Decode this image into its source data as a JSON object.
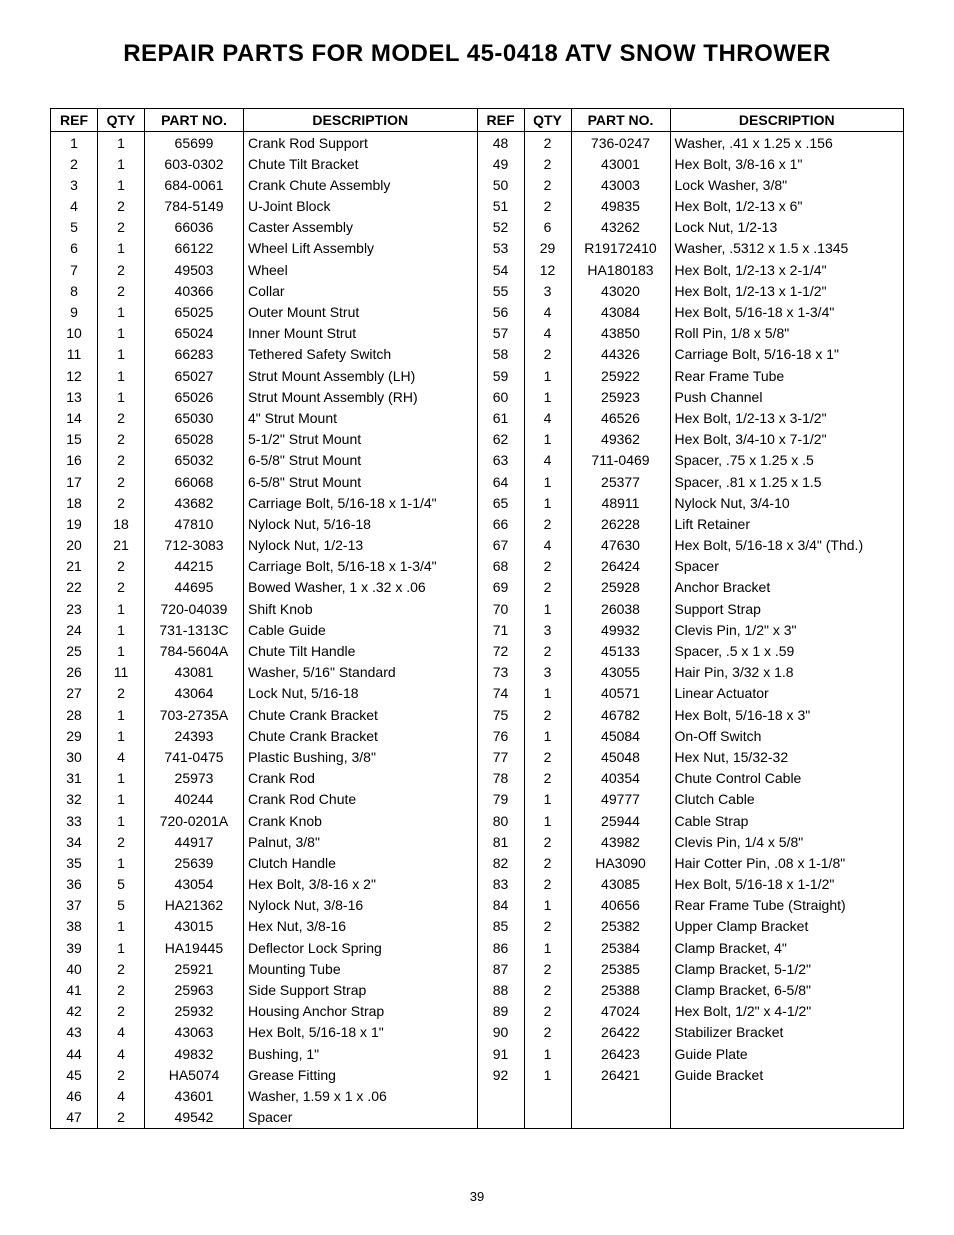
{
  "title": "REPAIR PARTS FOR MODEL 45-0418 ATV SNOW THROWER",
  "page_number": "39",
  "headers": {
    "ref": "REF",
    "qty": "QTY",
    "part": "PART NO.",
    "desc": "DESCRIPTION"
  },
  "styling": {
    "font_family": "Arial, Helvetica, sans-serif",
    "title_fontsize": 24,
    "body_fontsize": 14,
    "border_color": "#000000",
    "background_color": "#ffffff",
    "text_color": "#000000",
    "col_widths": {
      "ref": 38,
      "qty": 38,
      "part": 90
    }
  },
  "left": [
    {
      "ref": "1",
      "qty": "1",
      "part": "65699",
      "desc": "Crank Rod Support"
    },
    {
      "ref": "2",
      "qty": "1",
      "part": "603-0302",
      "desc": "Chute Tilt Bracket"
    },
    {
      "ref": "3",
      "qty": "1",
      "part": "684-0061",
      "desc": "Crank Chute Assembly"
    },
    {
      "ref": "4",
      "qty": "2",
      "part": "784-5149",
      "desc": "U-Joint Block"
    },
    {
      "ref": "5",
      "qty": "2",
      "part": "66036",
      "desc": "Caster Assembly"
    },
    {
      "ref": "6",
      "qty": "1",
      "part": "66122",
      "desc": "Wheel Lift Assembly"
    },
    {
      "ref": "7",
      "qty": "2",
      "part": "49503",
      "desc": "Wheel"
    },
    {
      "ref": "8",
      "qty": "2",
      "part": "40366",
      "desc": "Collar"
    },
    {
      "ref": "9",
      "qty": "1",
      "part": "65025",
      "desc": "Outer Mount Strut"
    },
    {
      "ref": "10",
      "qty": "1",
      "part": "65024",
      "desc": "Inner Mount Strut"
    },
    {
      "ref": "11",
      "qty": "1",
      "part": "66283",
      "desc": "Tethered Safety Switch"
    },
    {
      "ref": "12",
      "qty": "1",
      "part": "65027",
      "desc": "Strut Mount Assembly (LH)"
    },
    {
      "ref": "13",
      "qty": "1",
      "part": "65026",
      "desc": "Strut Mount Assembly (RH)"
    },
    {
      "ref": "14",
      "qty": "2",
      "part": "65030",
      "desc": "4\" Strut Mount"
    },
    {
      "ref": "15",
      "qty": "2",
      "part": "65028",
      "desc": "5-1/2\" Strut Mount"
    },
    {
      "ref": "16",
      "qty": "2",
      "part": "65032",
      "desc": "6-5/8\" Strut Mount"
    },
    {
      "ref": "17",
      "qty": "2",
      "part": "66068",
      "desc": "6-5/8\" Strut Mount"
    },
    {
      "ref": "18",
      "qty": "2",
      "part": "43682",
      "desc": "Carriage Bolt, 5/16-18 x 1-1/4\""
    },
    {
      "ref": "19",
      "qty": "18",
      "part": "47810",
      "desc": "Nylock Nut, 5/16-18"
    },
    {
      "ref": "20",
      "qty": "21",
      "part": "712-3083",
      "desc": "Nylock Nut, 1/2-13"
    },
    {
      "ref": "21",
      "qty": "2",
      "part": "44215",
      "desc": "Carriage Bolt, 5/16-18 x 1-3/4\""
    },
    {
      "ref": "22",
      "qty": "2",
      "part": "44695",
      "desc": "Bowed Washer, 1 x .32 x .06"
    },
    {
      "ref": "23",
      "qty": "1",
      "part": "720-04039",
      "desc": "Shift Knob"
    },
    {
      "ref": "24",
      "qty": "1",
      "part": "731-1313C",
      "desc": "Cable Guide"
    },
    {
      "ref": "25",
      "qty": "1",
      "part": "784-5604A",
      "desc": "Chute Tilt Handle"
    },
    {
      "ref": "26",
      "qty": "11",
      "part": "43081",
      "desc": "Washer, 5/16\" Standard"
    },
    {
      "ref": "27",
      "qty": "2",
      "part": "43064",
      "desc": "Lock Nut, 5/16-18"
    },
    {
      "ref": "28",
      "qty": "1",
      "part": "703-2735A",
      "desc": "Chute Crank Bracket"
    },
    {
      "ref": "29",
      "qty": "1",
      "part": "24393",
      "desc": "Chute Crank Bracket"
    },
    {
      "ref": "30",
      "qty": "4",
      "part": "741-0475",
      "desc": "Plastic Bushing, 3/8\""
    },
    {
      "ref": "31",
      "qty": "1",
      "part": "25973",
      "desc": "Crank Rod"
    },
    {
      "ref": "32",
      "qty": "1",
      "part": "40244",
      "desc": "Crank Rod Chute"
    },
    {
      "ref": "33",
      "qty": "1",
      "part": "720-0201A",
      "desc": "Crank Knob"
    },
    {
      "ref": "34",
      "qty": "2",
      "part": "44917",
      "desc": "Palnut, 3/8\""
    },
    {
      "ref": "35",
      "qty": "1",
      "part": "25639",
      "desc": "Clutch Handle"
    },
    {
      "ref": "36",
      "qty": "5",
      "part": "43054",
      "desc": "Hex Bolt, 3/8-16 x 2\""
    },
    {
      "ref": "37",
      "qty": "5",
      "part": "HA21362",
      "desc": "Nylock Nut, 3/8-16"
    },
    {
      "ref": "38",
      "qty": "1",
      "part": "43015",
      "desc": "Hex Nut, 3/8-16"
    },
    {
      "ref": "39",
      "qty": "1",
      "part": "HA19445",
      "desc": "Deflector Lock Spring"
    },
    {
      "ref": "40",
      "qty": "2",
      "part": "25921",
      "desc": "Mounting Tube"
    },
    {
      "ref": "41",
      "qty": "2",
      "part": "25963",
      "desc": "Side Support Strap"
    },
    {
      "ref": "42",
      "qty": "2",
      "part": "25932",
      "desc": "Housing Anchor Strap"
    },
    {
      "ref": "43",
      "qty": "4",
      "part": "43063",
      "desc": "Hex Bolt, 5/16-18 x 1\""
    },
    {
      "ref": "44",
      "qty": "4",
      "part": "49832",
      "desc": "Bushing, 1\""
    },
    {
      "ref": "45",
      "qty": "2",
      "part": "HA5074",
      "desc": "Grease Fitting"
    },
    {
      "ref": "46",
      "qty": "4",
      "part": "43601",
      "desc": "Washer, 1.59 x 1 x .06"
    },
    {
      "ref": "47",
      "qty": "2",
      "part": "49542",
      "desc": "Spacer"
    }
  ],
  "right": [
    {
      "ref": "48",
      "qty": "2",
      "part": "736-0247",
      "desc": "Washer, .41 x 1.25 x .156"
    },
    {
      "ref": "49",
      "qty": "2",
      "part": "43001",
      "desc": "Hex Bolt, 3/8-16 x 1\""
    },
    {
      "ref": "50",
      "qty": "2",
      "part": "43003",
      "desc": "Lock Washer, 3/8\""
    },
    {
      "ref": "51",
      "qty": "2",
      "part": "49835",
      "desc": "Hex Bolt, 1/2-13 x 6\""
    },
    {
      "ref": "52",
      "qty": "6",
      "part": "43262",
      "desc": "Lock Nut, 1/2-13"
    },
    {
      "ref": "53",
      "qty": "29",
      "part": "R19172410",
      "desc": "Washer, .5312 x 1.5 x .1345"
    },
    {
      "ref": "54",
      "qty": "12",
      "part": "HA180183",
      "desc": "Hex Bolt, 1/2-13 x 2-1/4\""
    },
    {
      "ref": "55",
      "qty": "3",
      "part": "43020",
      "desc": "Hex Bolt, 1/2-13 x 1-1/2\""
    },
    {
      "ref": "56",
      "qty": "4",
      "part": "43084",
      "desc": "Hex Bolt, 5/16-18 x 1-3/4\""
    },
    {
      "ref": "57",
      "qty": "4",
      "part": "43850",
      "desc": "Roll Pin, 1/8 x 5/8\""
    },
    {
      "ref": "58",
      "qty": "2",
      "part": "44326",
      "desc": "Carriage Bolt, 5/16-18 x 1\""
    },
    {
      "ref": "59",
      "qty": "1",
      "part": "25922",
      "desc": "Rear Frame Tube"
    },
    {
      "ref": "60",
      "qty": "1",
      "part": "25923",
      "desc": "Push Channel"
    },
    {
      "ref": "61",
      "qty": "4",
      "part": "46526",
      "desc": "Hex Bolt, 1/2-13 x 3-1/2\""
    },
    {
      "ref": "62",
      "qty": "1",
      "part": "49362",
      "desc": "Hex Bolt, 3/4-10 x 7-1/2\""
    },
    {
      "ref": "63",
      "qty": "4",
      "part": "711-0469",
      "desc": "Spacer, .75 x 1.25 x .5"
    },
    {
      "ref": "64",
      "qty": "1",
      "part": "25377",
      "desc": "Spacer, .81 x 1.25 x 1.5"
    },
    {
      "ref": "65",
      "qty": "1",
      "part": "48911",
      "desc": "Nylock Nut, 3/4-10"
    },
    {
      "ref": "66",
      "qty": "2",
      "part": "26228",
      "desc": "Lift Retainer"
    },
    {
      "ref": "67",
      "qty": "4",
      "part": "47630",
      "desc": "Hex Bolt, 5/16-18 x 3/4\" (Thd.)"
    },
    {
      "ref": "68",
      "qty": "2",
      "part": "26424",
      "desc": "Spacer"
    },
    {
      "ref": "69",
      "qty": "2",
      "part": "25928",
      "desc": "Anchor Bracket"
    },
    {
      "ref": "70",
      "qty": "1",
      "part": "26038",
      "desc": "Support Strap"
    },
    {
      "ref": "71",
      "qty": "3",
      "part": "49932",
      "desc": "Clevis Pin, 1/2\" x 3\""
    },
    {
      "ref": "72",
      "qty": "2",
      "part": "45133",
      "desc": "Spacer, .5 x 1 x .59"
    },
    {
      "ref": "73",
      "qty": "3",
      "part": "43055",
      "desc": "Hair Pin, 3/32 x 1.8"
    },
    {
      "ref": "74",
      "qty": "1",
      "part": "40571",
      "desc": "Linear Actuator"
    },
    {
      "ref": "75",
      "qty": "2",
      "part": "46782",
      "desc": "Hex Bolt, 5/16-18 x 3\""
    },
    {
      "ref": "76",
      "qty": "1",
      "part": "45084",
      "desc": "On-Off Switch"
    },
    {
      "ref": "77",
      "qty": "2",
      "part": "45048",
      "desc": "Hex Nut, 15/32-32"
    },
    {
      "ref": "78",
      "qty": "2",
      "part": "40354",
      "desc": "Chute Control Cable"
    },
    {
      "ref": "79",
      "qty": "1",
      "part": "49777",
      "desc": "Clutch Cable"
    },
    {
      "ref": "80",
      "qty": "1",
      "part": "25944",
      "desc": "Cable Strap"
    },
    {
      "ref": "81",
      "qty": "2",
      "part": "43982",
      "desc": "Clevis Pin, 1/4 x 5/8\""
    },
    {
      "ref": "82",
      "qty": "2",
      "part": "HA3090",
      "desc": "Hair Cotter Pin, .08 x 1-1/8\""
    },
    {
      "ref": "83",
      "qty": "2",
      "part": "43085",
      "desc": "Hex Bolt, 5/16-18 x 1-1/2\""
    },
    {
      "ref": "84",
      "qty": "1",
      "part": "40656",
      "desc": "Rear Frame Tube (Straight)"
    },
    {
      "ref": "85",
      "qty": "2",
      "part": "25382",
      "desc": "Upper Clamp Bracket"
    },
    {
      "ref": "86",
      "qty": "1",
      "part": "25384",
      "desc": "Clamp Bracket, 4\""
    },
    {
      "ref": "87",
      "qty": "2",
      "part": "25385",
      "desc": "Clamp Bracket, 5-1/2\""
    },
    {
      "ref": "88",
      "qty": "2",
      "part": "25388",
      "desc": "Clamp Bracket, 6-5/8\""
    },
    {
      "ref": "89",
      "qty": "2",
      "part": "47024",
      "desc": "Hex Bolt, 1/2\" x 4-1/2\""
    },
    {
      "ref": "90",
      "qty": "2",
      "part": "26422",
      "desc": "Stabilizer Bracket"
    },
    {
      "ref": "91",
      "qty": "1",
      "part": "26423",
      "desc": "Guide Plate"
    },
    {
      "ref": "92",
      "qty": "1",
      "part": "26421",
      "desc": "Guide Bracket"
    }
  ]
}
